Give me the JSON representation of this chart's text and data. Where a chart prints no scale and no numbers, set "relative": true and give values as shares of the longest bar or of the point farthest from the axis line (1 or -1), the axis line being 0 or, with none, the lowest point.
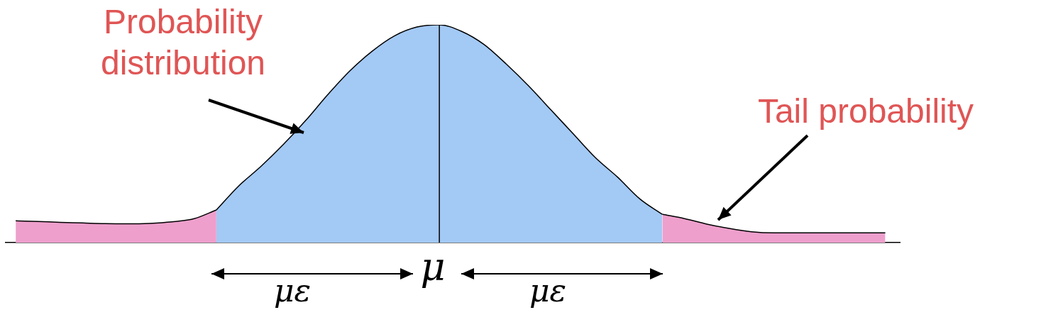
{
  "chart_data": {
    "type": "area",
    "relative": true,
    "legend": false,
    "categories": [
      null,
      null,
      null,
      null,
      null,
      null,
      null,
      null,
      null,
      null,
      null,
      null,
      null,
      null,
      null,
      null,
      null,
      null,
      null,
      null,
      null,
      null,
      null,
      null,
      null,
      null,
      null,
      null,
      null,
      null,
      null,
      null,
      null,
      null,
      null,
      null,
      null,
      null,
      null,
      null
    ],
    "series": [
      {
        "color": "#ee9fcc",
        "values": [
          0.1,
          0.097,
          0.093,
          0.09,
          0.087,
          0.086,
          0.088,
          0.095,
          0.11,
          0.15,
          null,
          null,
          null,
          null,
          null,
          null,
          null,
          null,
          null,
          null,
          null,
          null,
          null,
          null,
          null,
          null,
          null,
          null,
          null,
          null,
          null,
          null,
          null,
          null,
          null,
          null,
          null,
          null,
          null,
          null
        ]
      },
      {
        "color": "#a3c9f5",
        "values": [
          null,
          null,
          null,
          null,
          null,
          null,
          null,
          null,
          null,
          0.15,
          0.26,
          0.35,
          0.45,
          0.56,
          0.68,
          0.79,
          0.88,
          0.95,
          0.99,
          1,
          0.97,
          0.91,
          0.82,
          0.72,
          0.61,
          0.5,
          0.39,
          0.3,
          0.2,
          0.13,
          null,
          null,
          null,
          null,
          null,
          null,
          null,
          null,
          null,
          null
        ]
      },
      {
        "color": "#ee9fcc",
        "values": [
          null,
          null,
          null,
          null,
          null,
          null,
          null,
          null,
          null,
          null,
          null,
          null,
          null,
          null,
          null,
          null,
          null,
          null,
          null,
          null,
          null,
          null,
          null,
          null,
          null,
          null,
          null,
          null,
          null,
          0.13,
          0.11,
          0.085,
          0.065,
          0.05,
          0.045,
          0.045,
          0.045,
          0.045,
          0.045,
          0.045
        ]
      }
    ],
    "annotations": [
      "Probability distribution",
      "Tail probability",
      "με",
      "με",
      "μ"
    ]
  }
}
